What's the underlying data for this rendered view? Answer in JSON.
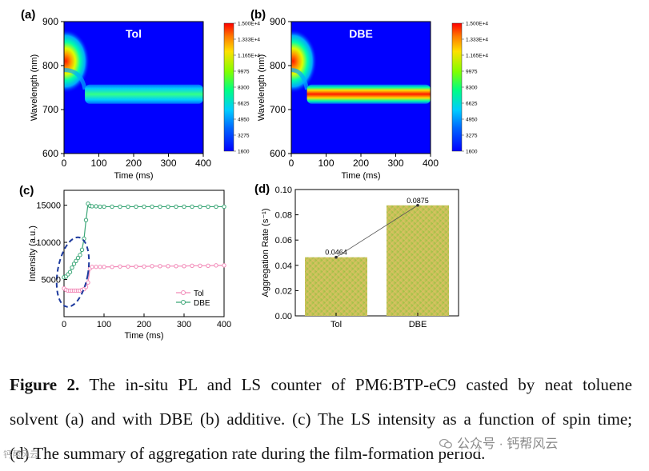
{
  "chart_data": [
    {
      "panel": "(a)",
      "type": "heatmap",
      "title": "Tol",
      "xlabel": "Time (ms)",
      "ylabel": "Wavelength (nm)",
      "xlim": [
        0,
        400
      ],
      "ylim": [
        600,
        900
      ],
      "xticks": [
        "0",
        "100",
        "200",
        "300",
        "400"
      ],
      "yticks": [
        "600",
        "700",
        "800",
        "900"
      ],
      "features": [
        {
          "name": "early-emission",
          "x": 5,
          "y": 810,
          "intensity": 15000
        },
        {
          "name": "aggregate-emission",
          "x_start": 60,
          "x_end": 400,
          "y": 735,
          "intensity": 8300
        }
      ],
      "colorbar": {
        "ticks": [
          "1.500E+4",
          "1.333E+4",
          "1.165E+4",
          "9975",
          "8300",
          "6625",
          "4950",
          "3275",
          "1600"
        ],
        "min": 1600,
        "max": 15000
      }
    },
    {
      "panel": "(b)",
      "type": "heatmap",
      "title": "DBE",
      "xlabel": "Time (ms)",
      "ylabel": "Wavelength (nm)",
      "xlim": [
        0,
        400
      ],
      "ylim": [
        600,
        900
      ],
      "xticks": [
        "0",
        "100",
        "200",
        "300",
        "400"
      ],
      "yticks": [
        "600",
        "700",
        "800",
        "900"
      ],
      "features": [
        {
          "name": "early-emission",
          "x": 5,
          "y": 810,
          "intensity": 15000
        },
        {
          "name": "aggregate-emission",
          "x_start": 45,
          "x_end": 400,
          "y": 735,
          "intensity": 15000
        }
      ],
      "colorbar": {
        "ticks": [
          "1.500E+4",
          "1.333E+4",
          "1.165E+4",
          "9975",
          "8300",
          "6625",
          "4950",
          "3275",
          "1600"
        ],
        "min": 1600,
        "max": 15000
      }
    },
    {
      "panel": "(c)",
      "type": "line",
      "xlabel": "Time (ms)",
      "ylabel": "Intensity (a.u.)",
      "xlim": [
        0,
        400
      ],
      "ylim": [
        0,
        17000
      ],
      "xticks": [
        "0",
        "100",
        "200",
        "300",
        "400"
      ],
      "yticks": [
        "5000",
        "10000",
        "15000"
      ],
      "legend": "bottom-right",
      "series": [
        {
          "name": "Tol",
          "color": "#f28ab8",
          "x": [
            0,
            5,
            10,
            15,
            20,
            25,
            30,
            35,
            40,
            45,
            50,
            55,
            60,
            65,
            70,
            80,
            90,
            100,
            120,
            140,
            160,
            180,
            200,
            220,
            240,
            260,
            280,
            300,
            320,
            340,
            360,
            380,
            400
          ],
          "y": [
            3800,
            3600,
            3500,
            3500,
            3500,
            3500,
            3500,
            3500,
            3500,
            3600,
            3700,
            4000,
            4600,
            6500,
            6700,
            6700,
            6700,
            6700,
            6700,
            6750,
            6750,
            6750,
            6750,
            6800,
            6800,
            6800,
            6800,
            6800,
            6850,
            6850,
            6850,
            6900,
            6900
          ]
        },
        {
          "name": "DBE",
          "color": "#3aa676",
          "x": [
            0,
            5,
            10,
            15,
            20,
            25,
            30,
            35,
            40,
            45,
            50,
            55,
            60,
            65,
            70,
            80,
            90,
            100,
            120,
            140,
            160,
            180,
            200,
            220,
            240,
            260,
            280,
            300,
            320,
            340,
            360,
            380,
            400
          ],
          "y": [
            5300,
            5400,
            5700,
            6000,
            6600,
            7100,
            7500,
            7900,
            8300,
            9000,
            10500,
            13000,
            15200,
            14900,
            14850,
            14850,
            14800,
            14800,
            14800,
            14800,
            14800,
            14800,
            14800,
            14800,
            14800,
            14800,
            14800,
            14800,
            14800,
            14800,
            14800,
            14800,
            14800
          ]
        }
      ],
      "annotation": "dashed ellipse around early-time region (0–50 ms)"
    },
    {
      "panel": "(d)",
      "type": "bar",
      "xlabel": "",
      "ylabel": "Aggregation Rate (s⁻¹)",
      "ylim": [
        0,
        0.1
      ],
      "yticks": [
        "0.00",
        "0.02",
        "0.04",
        "0.06",
        "0.08",
        "0.10"
      ],
      "categories": [
        "Tol",
        "DBE"
      ],
      "values": [
        0.0464,
        0.0875
      ],
      "data_labels": [
        "0.0464",
        "0.0875"
      ]
    }
  ],
  "caption": {
    "lead": "Figure 2.",
    "lines": [
      "The in-situ PL and LS counter of PM6:BTP-eC9 casted by neat toluene",
      "solvent (a) and with DBE (b) additive. (c) The LS intensity as a function of spin time;",
      "(d) The summary of aggregation rate during the film-formation period."
    ]
  },
  "watermark": {
    "text": "公众号 · 钙帮风云",
    "left_fragment": "钙帮风云"
  }
}
